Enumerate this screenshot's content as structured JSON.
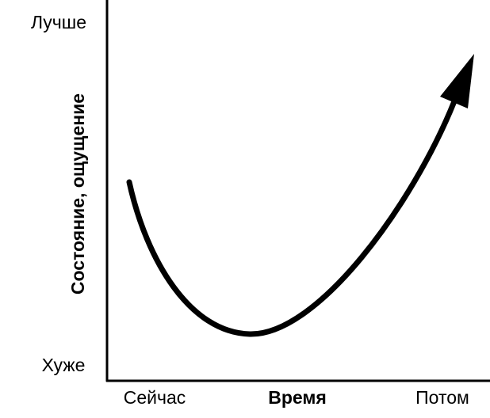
{
  "y_axis": {
    "title": "Состояние, ощущение",
    "top_label": "Лучше",
    "bottom_label": "Хуже"
  },
  "x_axis": {
    "title": "Время",
    "left_label": "Сейчас",
    "right_label": "Потом"
  }
}
